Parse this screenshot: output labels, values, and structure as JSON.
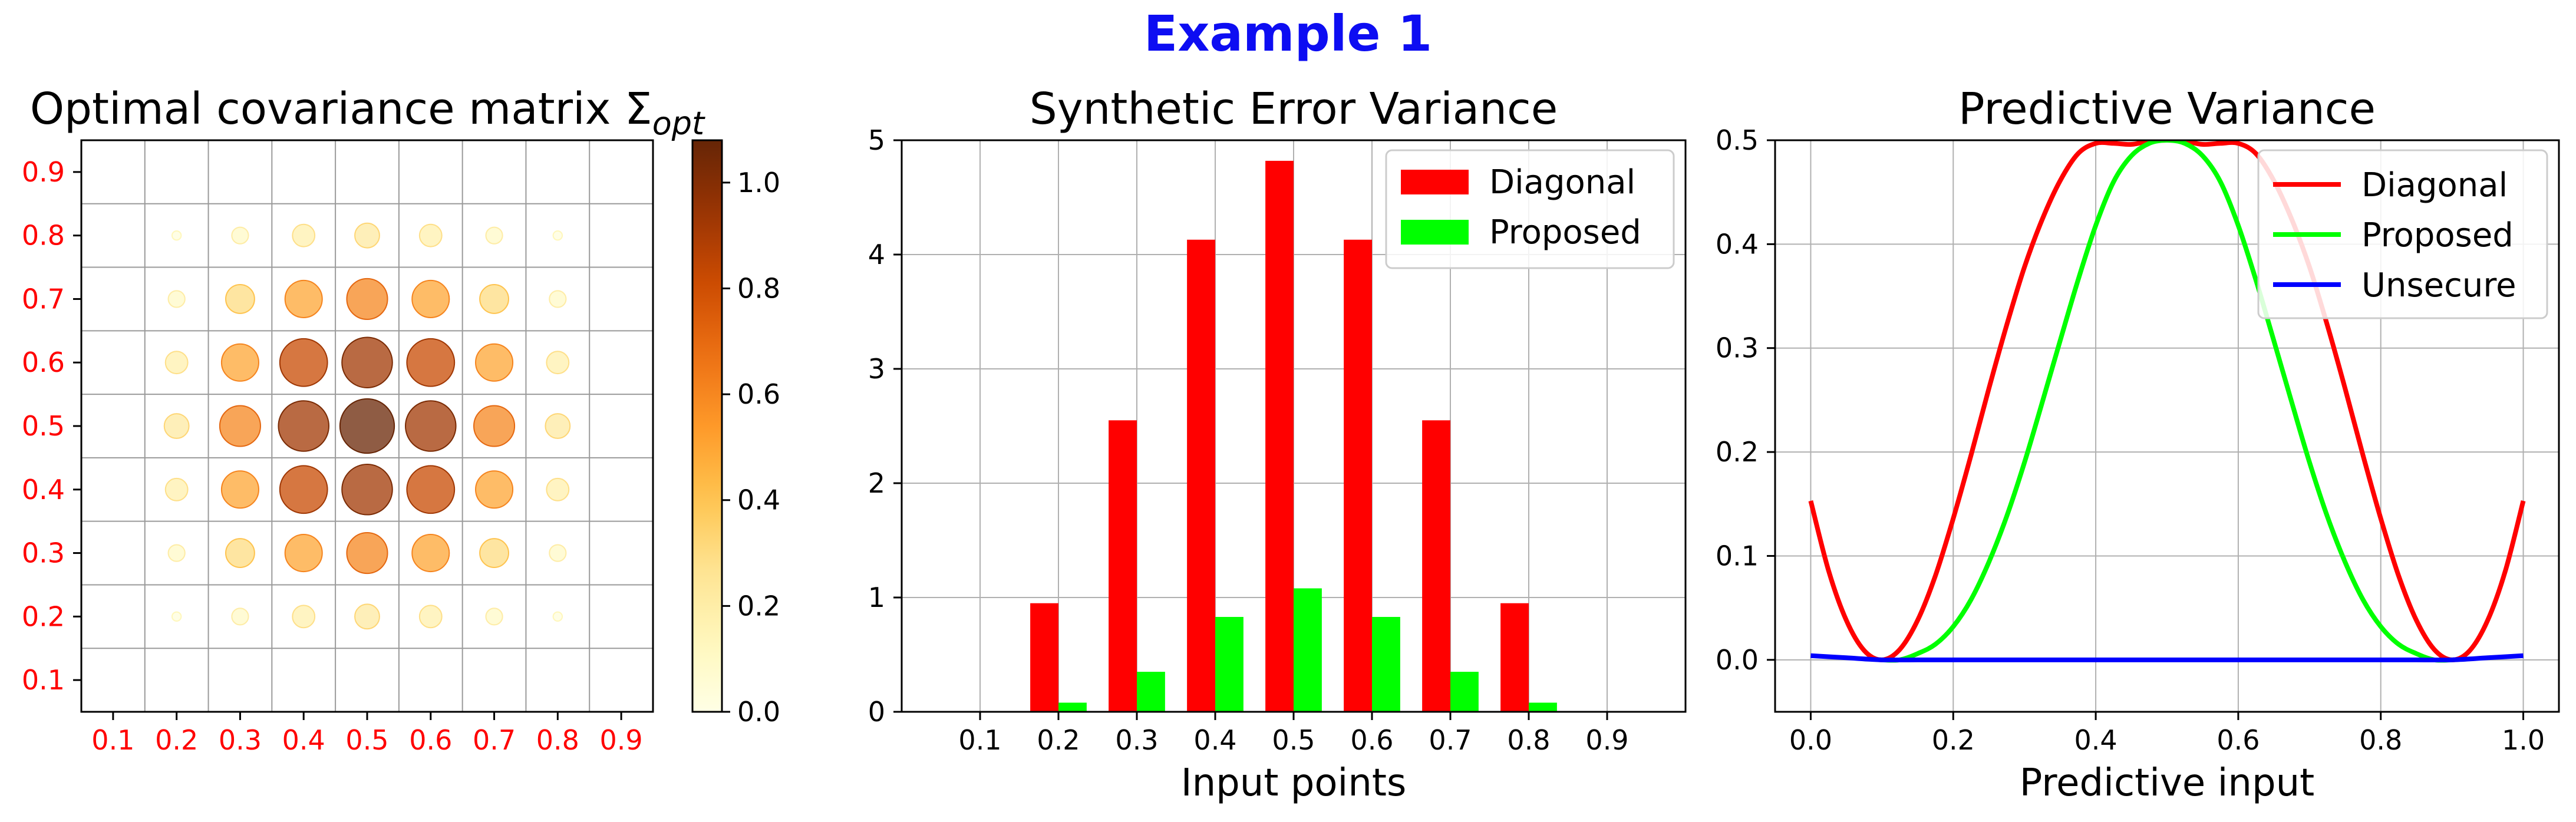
{
  "figure": {
    "title": "Example 1",
    "title_color": "#0d0df2"
  },
  "chart_data": [
    {
      "type": "heatmap",
      "title_main": "Optimal covariance matrix Σ",
      "title_sub": "opt",
      "tick_labels": [
        "0.1",
        "0.2",
        "0.3",
        "0.4",
        "0.5",
        "0.6",
        "0.7",
        "0.8",
        "0.9"
      ],
      "tick_label_color": "#ff0000",
      "xlim": [
        0.05,
        0.95
      ],
      "ylim": [
        0.05,
        0.95
      ],
      "grid_edges": [
        0.05,
        0.15,
        0.25,
        0.35,
        0.45,
        0.55,
        0.65,
        0.75,
        0.85,
        0.95
      ],
      "matrix_points": [
        0.1,
        0.2,
        0.3,
        0.4,
        0.5,
        0.6,
        0.7,
        0.8,
        0.9
      ],
      "matrix_values": [
        [
          0.0,
          0.0,
          0.0,
          0.0,
          0.0,
          0.0,
          0.0,
          0.0,
          0.0
        ],
        [
          0.0,
          0.03,
          0.1,
          0.18,
          0.22,
          0.18,
          0.1,
          0.03,
          0.0
        ],
        [
          0.0,
          0.1,
          0.3,
          0.5,
          0.6,
          0.5,
          0.3,
          0.1,
          0.0
        ],
        [
          0.0,
          0.18,
          0.5,
          0.82,
          0.92,
          0.82,
          0.5,
          0.18,
          0.0
        ],
        [
          0.0,
          0.22,
          0.6,
          0.92,
          1.07,
          0.92,
          0.6,
          0.22,
          0.0
        ],
        [
          0.0,
          0.18,
          0.5,
          0.82,
          0.92,
          0.82,
          0.5,
          0.18,
          0.0
        ],
        [
          0.0,
          0.1,
          0.3,
          0.5,
          0.6,
          0.5,
          0.3,
          0.1,
          0.0
        ],
        [
          0.0,
          0.03,
          0.1,
          0.18,
          0.22,
          0.18,
          0.1,
          0.03,
          0.0
        ],
        [
          0.0,
          0.0,
          0.0,
          0.0,
          0.0,
          0.0,
          0.0,
          0.0,
          0.0
        ]
      ],
      "colorbar": {
        "min": 0.0,
        "max": 1.08,
        "ticks": [
          "0.0",
          "0.2",
          "0.4",
          "0.6",
          "0.8",
          "1.0"
        ],
        "colormap": "YlOrBr"
      }
    },
    {
      "type": "bar",
      "title": "Synthetic Error Variance",
      "xlabel": "Input points",
      "ylabel": "",
      "categories": [
        "0.1",
        "0.2",
        "0.3",
        "0.4",
        "0.5",
        "0.6",
        "0.7",
        "0.8",
        "0.9"
      ],
      "series": [
        {
          "name": "Diagonal",
          "color": "#ff0000",
          "values": [
            0.0,
            0.95,
            2.55,
            4.13,
            4.82,
            4.13,
            2.55,
            0.95,
            0.0
          ]
        },
        {
          "name": "Proposed",
          "color": "#00ff00",
          "values": [
            0.0,
            0.08,
            0.35,
            0.83,
            1.08,
            0.83,
            0.35,
            0.08,
            0.0
          ]
        }
      ],
      "ylim": [
        0,
        5
      ],
      "yticks": [
        "0",
        "1",
        "2",
        "3",
        "4",
        "5"
      ],
      "grid": true,
      "legend_position": "top-right"
    },
    {
      "type": "line",
      "title": "Predictive Variance",
      "xlabel": "Predictive input",
      "ylabel": "",
      "xlim": [
        -0.05,
        1.05
      ],
      "ylim": [
        -0.05,
        0.5
      ],
      "xticks": [
        "0.0",
        "0.2",
        "0.4",
        "0.6",
        "0.8",
        "1.0"
      ],
      "yticks": [
        "0.0",
        "0.1",
        "0.2",
        "0.3",
        "0.4",
        "0.5"
      ],
      "grid": true,
      "legend_position": "top-right",
      "series": [
        {
          "name": "Diagonal",
          "color": "#ff0000",
          "x": [
            0.0,
            0.025,
            0.05,
            0.075,
            0.1,
            0.125,
            0.15,
            0.175,
            0.2,
            0.225,
            0.25,
            0.275,
            0.3,
            0.325,
            0.35,
            0.375,
            0.4,
            0.425,
            0.45,
            0.475,
            0.5,
            0.525,
            0.55,
            0.575,
            0.6,
            0.625,
            0.65,
            0.675,
            0.7,
            0.725,
            0.75,
            0.775,
            0.8,
            0.825,
            0.85,
            0.875,
            0.9,
            0.925,
            0.95,
            0.975,
            1.0
          ],
          "y": [
            0.153,
            0.086,
            0.038,
            0.009,
            0.0,
            0.01,
            0.038,
            0.081,
            0.136,
            0.197,
            0.261,
            0.322,
            0.378,
            0.424,
            0.461,
            0.487,
            0.497,
            0.497,
            0.496,
            0.499,
            0.5,
            0.499,
            0.496,
            0.497,
            0.497,
            0.487,
            0.461,
            0.424,
            0.378,
            0.322,
            0.261,
            0.197,
            0.136,
            0.081,
            0.038,
            0.01,
            0.0,
            0.009,
            0.038,
            0.086,
            0.153
          ]
        },
        {
          "name": "Proposed",
          "color": "#00ff00",
          "x": [
            0.1,
            0.125,
            0.15,
            0.175,
            0.2,
            0.225,
            0.25,
            0.275,
            0.3,
            0.325,
            0.35,
            0.375,
            0.4,
            0.425,
            0.45,
            0.475,
            0.5,
            0.525,
            0.55,
            0.575,
            0.6,
            0.625,
            0.65,
            0.675,
            0.7,
            0.725,
            0.75,
            0.775,
            0.8,
            0.825,
            0.85,
            0.875,
            0.9
          ],
          "y": [
            0.0,
            0.0,
            0.006,
            0.015,
            0.032,
            0.058,
            0.094,
            0.138,
            0.19,
            0.248,
            0.307,
            0.365,
            0.418,
            0.46,
            0.485,
            0.497,
            0.5,
            0.497,
            0.485,
            0.46,
            0.418,
            0.365,
            0.307,
            0.248,
            0.19,
            0.138,
            0.094,
            0.058,
            0.032,
            0.015,
            0.006,
            0.0,
            0.0
          ]
        },
        {
          "name": "Unsecure",
          "color": "#0000ff",
          "x": [
            0.0,
            0.05,
            0.1,
            0.15,
            0.2,
            0.3,
            0.4,
            0.5,
            0.6,
            0.7,
            0.8,
            0.85,
            0.9,
            0.95,
            1.0
          ],
          "y": [
            0.004,
            0.002,
            0.0,
            0.0,
            0.0,
            0.0,
            0.0,
            0.0,
            0.0,
            0.0,
            0.0,
            0.0,
            0.0,
            0.002,
            0.004
          ]
        }
      ]
    }
  ]
}
